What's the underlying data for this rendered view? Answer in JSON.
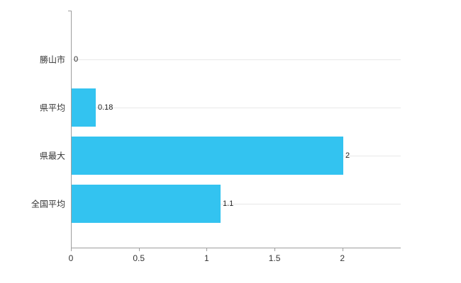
{
  "chart_data": {
    "type": "bar",
    "orientation": "horizontal",
    "title": "",
    "xlabel": "",
    "ylabel": "",
    "categories": [
      "勝山市",
      "県平均",
      "県最大",
      "全国平均"
    ],
    "values": [
      0,
      0.18,
      2,
      1.1
    ],
    "value_labels": [
      "0",
      "0.18",
      "2",
      "1.1"
    ],
    "x_ticks": [
      0,
      0.5,
      1,
      1.5,
      2
    ],
    "x_tick_labels": [
      "0",
      "0.5",
      "1",
      "1.5",
      "2"
    ],
    "xlim": [
      0,
      2.43
    ],
    "bar_color": "#33c3f0",
    "grid": true,
    "legend": "none",
    "background_color": "#ffffff"
  }
}
